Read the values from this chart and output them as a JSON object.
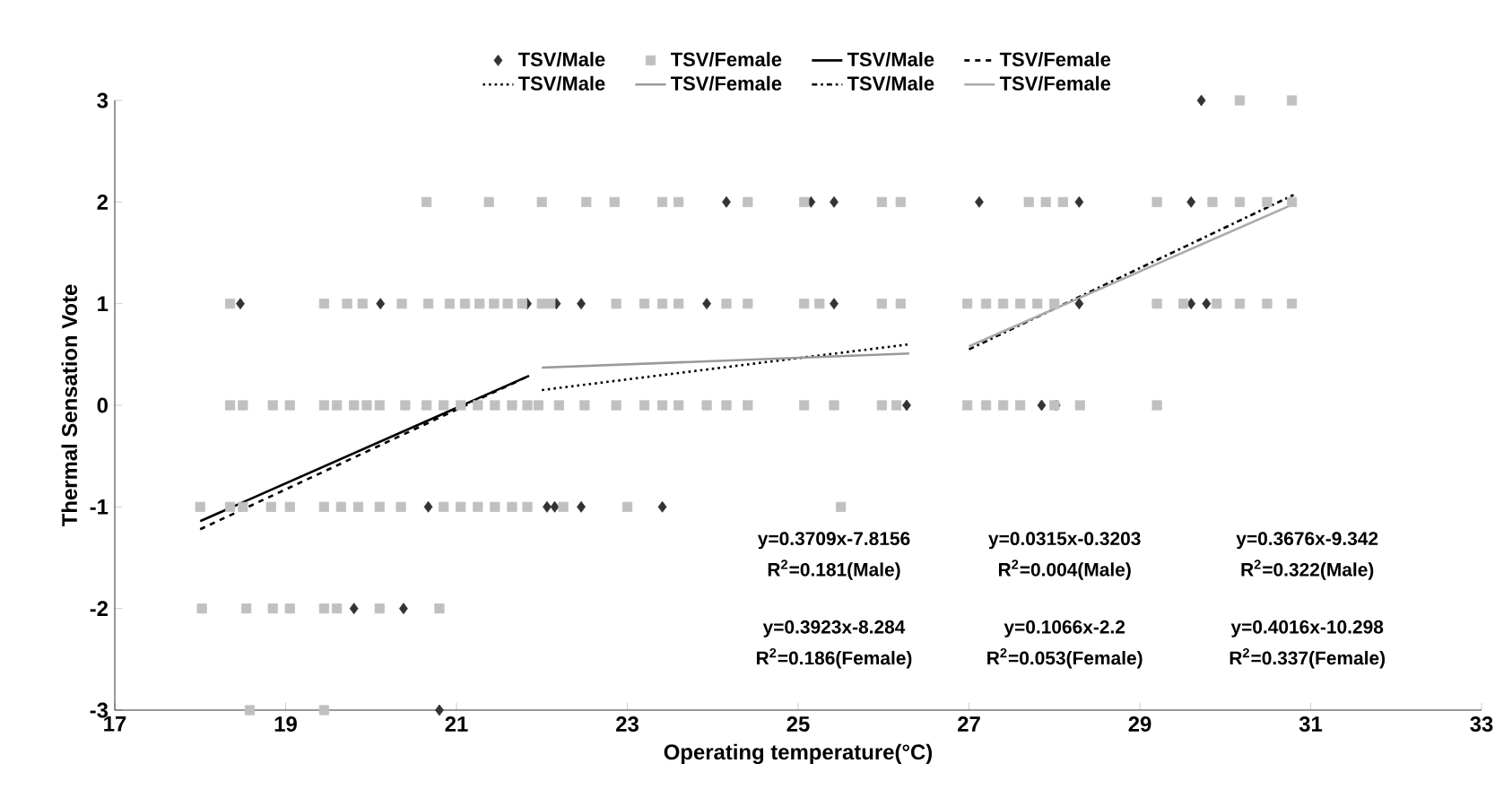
{
  "chart_data": {
    "type": "scatter",
    "xlabel": "Operating temperature(°C)",
    "ylabel": "Thermal Sensation Vote",
    "xlim": [
      17,
      33
    ],
    "xticks": [
      17,
      19,
      21,
      23,
      25,
      27,
      29,
      31,
      33
    ],
    "ylim": [
      -3,
      3
    ],
    "yticks": [
      -3,
      -2,
      -1,
      0,
      1,
      2,
      3
    ],
    "legend": "top",
    "series": [
      {
        "name": "TSV/Male",
        "marker": "diamond",
        "color": "#333333",
        "x": [
          29.72,
          24.16,
          25.15,
          25.42,
          27.12,
          28.29,
          29.6,
          18.47,
          20.11,
          21.83,
          22.17,
          22.46,
          23.93,
          25.42,
          28.29,
          29.6,
          29.78,
          26.27,
          27.85,
          28.02,
          20.67,
          22.06,
          22.15,
          22.46,
          23.41,
          19.8,
          20.38,
          20.8
        ],
        "values": [
          3,
          2,
          2,
          2,
          2,
          2,
          2,
          1,
          1,
          1,
          1,
          1,
          1,
          1,
          1,
          1,
          1,
          0,
          0,
          0,
          -1,
          -1,
          -1,
          -1,
          -1,
          -2,
          -2,
          -3
        ]
      },
      {
        "name": "TSV/Female",
        "marker": "square",
        "color": "#c0c0c0",
        "x": [
          30.17,
          30.78,
          20.65,
          21.38,
          22.0,
          22.52,
          22.85,
          23.41,
          23.6,
          24.41,
          25.07,
          25.98,
          26.2,
          27.7,
          27.9,
          28.1,
          29.2,
          29.85,
          30.17,
          30.49,
          30.78,
          18.35,
          19.45,
          19.72,
          19.9,
          20.36,
          20.67,
          20.92,
          21.1,
          21.27,
          21.44,
          21.6,
          21.77,
          22.0,
          22.1,
          22.87,
          23.2,
          23.41,
          23.6,
          24.16,
          24.41,
          25.07,
          25.25,
          25.98,
          26.2,
          26.98,
          27.2,
          27.4,
          27.6,
          27.8,
          28.0,
          29.2,
          29.51,
          29.9,
          30.17,
          30.49,
          30.78,
          18.35,
          18.5,
          18.85,
          19.05,
          19.45,
          19.6,
          19.8,
          19.95,
          20.1,
          20.4,
          20.65,
          20.85,
          21.05,
          21.25,
          21.45,
          21.65,
          21.83,
          21.96,
          22.2,
          22.5,
          22.87,
          23.2,
          23.41,
          23.6,
          23.93,
          24.16,
          24.41,
          25.07,
          25.42,
          25.98,
          26.15,
          26.98,
          27.2,
          27.4,
          27.6,
          28.0,
          28.3,
          29.2,
          18.0,
          18.35,
          18.5,
          18.83,
          19.05,
          19.45,
          19.65,
          19.85,
          20.1,
          20.35,
          20.85,
          21.05,
          21.25,
          21.45,
          21.65,
          21.83,
          22.25,
          23.0,
          25.5,
          18.02,
          18.54,
          18.85,
          19.05,
          19.45,
          19.6,
          20.1,
          20.8,
          18.58,
          19.45
        ],
        "values": [
          3,
          3,
          2,
          2,
          2,
          2,
          2,
          2,
          2,
          2,
          2,
          2,
          2,
          2,
          2,
          2,
          2,
          2,
          2,
          2,
          2,
          1,
          1,
          1,
          1,
          1,
          1,
          1,
          1,
          1,
          1,
          1,
          1,
          1,
          1,
          1,
          1,
          1,
          1,
          1,
          1,
          1,
          1,
          1,
          1,
          1,
          1,
          1,
          1,
          1,
          1,
          1,
          1,
          1,
          1,
          1,
          1,
          0,
          0,
          0,
          0,
          0,
          0,
          0,
          0,
          0,
          0,
          0,
          0,
          0,
          0,
          0,
          0,
          0,
          0,
          0,
          0,
          0,
          0,
          0,
          0,
          0,
          0,
          0,
          0,
          0,
          0,
          0,
          0,
          0,
          0,
          0,
          0,
          0,
          0,
          -1,
          -1,
          -1,
          -1,
          -1,
          -1,
          -1,
          -1,
          -1,
          -1,
          -1,
          -1,
          -1,
          -1,
          -1,
          -1,
          -1,
          -1,
          -1,
          -2,
          -2,
          -2,
          -2,
          -2,
          -2,
          -2,
          -2,
          -3,
          -3
        ]
      },
      {
        "name": "TSV/Male",
        "type": "line",
        "marker": "none",
        "line_style": "solid",
        "color": "#000000",
        "x": [
          18.0,
          21.85
        ],
        "values": [
          -1.14,
          0.29
        ]
      },
      {
        "name": "TSV/Female",
        "type": "line",
        "marker": "none",
        "line_style": "dashed",
        "color": "#000000",
        "x": [
          18.0,
          21.85
        ],
        "values": [
          -1.22,
          0.29
        ]
      },
      {
        "name": "TSV/Male",
        "type": "line",
        "marker": "none",
        "line_style": "dotted",
        "color": "#000000",
        "x": [
          22.0,
          26.3
        ],
        "values": [
          0.15,
          0.6
        ]
      },
      {
        "name": "TSV/Female",
        "type": "line",
        "marker": "none",
        "line_style": "solid",
        "color": "#999999",
        "x": [
          22.0,
          26.3
        ],
        "values": [
          0.37,
          0.51
        ]
      },
      {
        "name": "TSV/Male",
        "type": "line",
        "marker": "none",
        "line_style": "dashdot",
        "color": "#000000",
        "x": [
          27.0,
          30.8
        ],
        "values": [
          0.55,
          2.07
        ]
      },
      {
        "name": "TSV/Female",
        "type": "line",
        "marker": "none",
        "line_style": "solid",
        "color": "#aaaaaa",
        "x": [
          27.0,
          30.8
        ],
        "values": [
          0.58,
          1.98
        ]
      }
    ],
    "annotations": [
      "y=0.3709x-7.8156",
      "R$^{2}$=0.181(Male)",
      "y=0.0315x-0.3203",
      "R$^{2}$=0.004(Male)",
      "y=0.3676x-9.342",
      "R$^{2}$=0.322(Male)",
      "y=0.3923x-8.284",
      "R$^{2}$=0.186(Female)",
      "y=0.1066x-2.2",
      "R$^{2}$=0.053(Female)",
      "y=0.4016x-10.298",
      "R$^{2}$=0.337(Female)"
    ]
  }
}
